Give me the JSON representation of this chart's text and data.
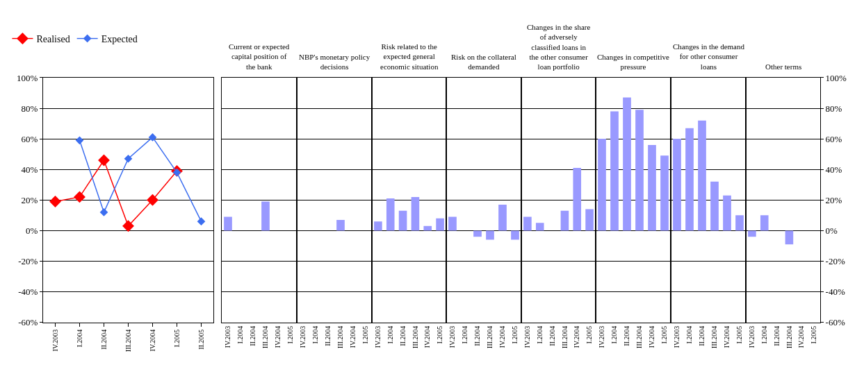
{
  "chart_data": [
    {
      "type": "line",
      "categories": [
        "IV.2003",
        "I.2004",
        "II.2004",
        "III.2004",
        "IV.2004",
        "I.2005",
        "II.2005"
      ],
      "series": [
        {
          "name": "Realised",
          "color": "#ff0000",
          "values": [
            19,
            22,
            46,
            3,
            20,
            39,
            null
          ]
        },
        {
          "name": "Expected",
          "color": "#3c6ef0",
          "values": [
            null,
            59,
            12,
            47,
            61,
            38,
            6
          ]
        }
      ],
      "marker": "diamond",
      "legend": "top left",
      "grid": "y",
      "ylim": [
        -60,
        100
      ],
      "yticks": [
        {
          "value": -60,
          "label": "-60%"
        },
        {
          "value": -40,
          "label": "-40%"
        },
        {
          "value": -20,
          "label": "-20%"
        },
        {
          "value": 0,
          "label": "0%"
        },
        {
          "value": 20,
          "label": "20%"
        },
        {
          "value": 40,
          "label": "40%"
        },
        {
          "value": 60,
          "label": "60%"
        },
        {
          "value": 80,
          "label": "80%"
        },
        {
          "value": 100,
          "label": "100%"
        }
      ]
    },
    {
      "type": "bar",
      "title": "Current or expected capital position of the bank",
      "categories": [
        "IV.2003",
        "I.2004",
        "II.2004",
        "III.2004",
        "IV.2004",
        "I.2005"
      ],
      "values": [
        9,
        null,
        null,
        19,
        null,
        null
      ],
      "color": "#9999ff",
      "grid": "y",
      "tick_labels": "x",
      "ylim": [
        -60,
        100
      ],
      "yticks": [
        -60,
        -40,
        -20,
        0,
        20,
        40,
        60,
        80,
        100
      ]
    },
    {
      "type": "bar",
      "title": "NBP's monetary policy decisions",
      "categories": [
        "IV.2003",
        "I.2004",
        "II.2004",
        "III.2004",
        "IV.2004",
        "I.2005"
      ],
      "values": [
        null,
        null,
        null,
        7,
        null,
        null
      ],
      "color": "#9999ff",
      "grid": "y",
      "tick_labels": "x",
      "ylim": [
        -60,
        100
      ],
      "yticks": [
        -60,
        -40,
        -20,
        0,
        20,
        40,
        60,
        80,
        100
      ]
    },
    {
      "type": "bar",
      "title": "Risk related to the expected general economic situation",
      "categories": [
        "IV.2003",
        "I.2004",
        "II.2004",
        "III.2004",
        "IV.2004",
        "I.2005"
      ],
      "values": [
        6,
        21,
        13,
        22,
        3,
        8
      ],
      "color": "#9999ff",
      "grid": "y",
      "tick_labels": "x",
      "ylim": [
        -60,
        100
      ],
      "yticks": [
        -60,
        -40,
        -20,
        0,
        20,
        40,
        60,
        80,
        100
      ]
    },
    {
      "type": "bar",
      "title": "Risk on the collateral demanded",
      "categories": [
        "IV.2003",
        "I.2004",
        "II.2004",
        "III.2004",
        "IV.2004",
        "I.2005"
      ],
      "values": [
        9,
        null,
        -4,
        -6,
        17,
        -6
      ],
      "color": "#9999ff",
      "grid": "y",
      "tick_labels": "x",
      "ylim": [
        -60,
        100
      ],
      "yticks": [
        -60,
        -40,
        -20,
        0,
        20,
        40,
        60,
        80,
        100
      ]
    },
    {
      "type": "bar",
      "title": "Changes in the share of adversely classified loans in the other consumer loan portfolio",
      "categories": [
        "IV.2003",
        "I.2004",
        "II.2004",
        "III.2004",
        "IV.2004",
        "I.2005"
      ],
      "values": [
        9,
        5,
        null,
        13,
        41,
        14
      ],
      "color": "#9999ff",
      "grid": "y",
      "tick_labels": "x",
      "ylim": [
        -60,
        100
      ],
      "yticks": [
        -60,
        -40,
        -20,
        0,
        20,
        40,
        60,
        80,
        100
      ]
    },
    {
      "type": "bar",
      "title": "Changes in competitive pressure",
      "categories": [
        "IV.2003",
        "I.2004",
        "II.2004",
        "III.2004",
        "IV.2004",
        "I.2005"
      ],
      "values": [
        60,
        78,
        87,
        79,
        56,
        49
      ],
      "color": "#9999ff",
      "grid": "y",
      "tick_labels": "x",
      "ylim": [
        -60,
        100
      ],
      "yticks": [
        -60,
        -40,
        -20,
        0,
        20,
        40,
        60,
        80,
        100
      ]
    },
    {
      "type": "bar",
      "title": "Changes in the demand for other consumer loans",
      "categories": [
        "IV.2003",
        "I.2004",
        "II.2004",
        "III.2004",
        "IV.2004",
        "I.2005"
      ],
      "values": [
        60,
        67,
        72,
        32,
        23,
        10
      ],
      "color": "#9999ff",
      "grid": "y",
      "tick_labels": "x",
      "ylim": [
        -60,
        100
      ],
      "yticks": [
        -60,
        -40,
        -20,
        0,
        20,
        40,
        60,
        80,
        100
      ]
    },
    {
      "type": "bar",
      "title": "Other terms",
      "categories": [
        "IV.2003",
        "I.2004",
        "II.2004",
        "III.2004",
        "IV.2004",
        "I.2005"
      ],
      "series": [
        {
          "color": "#9999ff",
          "axis": "y2",
          "values": [
            -4,
            10,
            null,
            -9,
            null,
            null
          ]
        }
      ],
      "grid": "y",
      "y2lim": [
        -60,
        100
      ],
      "y2ticks": [
        {
          "value": -60,
          "label": "-60%"
        },
        {
          "value": -40,
          "label": "-40%"
        },
        {
          "value": -20,
          "label": "-20%"
        },
        {
          "value": 0,
          "label": "0%"
        },
        {
          "value": 20,
          "label": "20%"
        },
        {
          "value": 40,
          "label": "40%"
        },
        {
          "value": 60,
          "label": "60%"
        },
        {
          "value": 80,
          "label": "80%"
        },
        {
          "value": 100,
          "label": "100%"
        }
      ]
    }
  ]
}
